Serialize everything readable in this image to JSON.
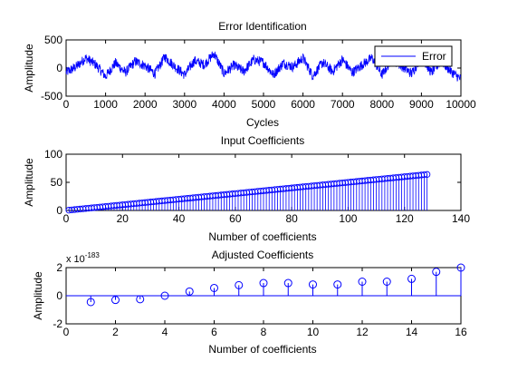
{
  "colors": {
    "series": "#0000ff",
    "axes": "#000000",
    "background": "#ffffff"
  },
  "chart_data": [
    {
      "type": "line",
      "title": "Error Identification",
      "xlabel": "Cycles",
      "ylabel": "Amplitude",
      "xlim": [
        0,
        10000
      ],
      "ylim": [
        -500,
        500
      ],
      "xticks": [
        0,
        1000,
        2000,
        3000,
        4000,
        5000,
        6000,
        7000,
        8000,
        9000,
        10000
      ],
      "yticks": [
        -500,
        0,
        500
      ],
      "grid": false,
      "legend": {
        "position": "top-right",
        "entries": [
          "Error"
        ]
      },
      "series": [
        {
          "name": "Error",
          "x": [
            0,
            250,
            500,
            750,
            1000,
            1250,
            1500,
            1750,
            2000,
            2250,
            2500,
            2750,
            3000,
            3250,
            3500,
            3750,
            4000,
            4250,
            4500,
            4750,
            5000,
            5250,
            5500,
            5750,
            6000,
            6250,
            6500,
            6750,
            7000,
            7250,
            7500,
            7750,
            8000,
            8250,
            8500,
            8750,
            9000,
            9250,
            9500,
            9750,
            10000
          ],
          "values": [
            -80,
            20,
            180,
            60,
            -150,
            90,
            -80,
            120,
            40,
            -100,
            200,
            30,
            -120,
            130,
            60,
            260,
            -100,
            50,
            -60,
            150,
            100,
            -120,
            90,
            20,
            180,
            -140,
            100,
            -60,
            150,
            -80,
            60,
            180,
            -120,
            150,
            40,
            -100,
            200,
            -80,
            120,
            -60,
            -200
          ]
        }
      ]
    },
    {
      "type": "stem",
      "title": "Input Coefficients",
      "xlabel": "Number of coefficients",
      "ylabel": "Amplitude",
      "xlim": [
        0,
        140
      ],
      "ylim": [
        0,
        100
      ],
      "xticks": [
        0,
        20,
        40,
        60,
        80,
        100,
        120,
        140
      ],
      "yticks": [
        0,
        50,
        100
      ],
      "grid": false,
      "series": [
        {
          "x_start": 1,
          "x_end": 128,
          "values_start": 0.5,
          "values_end": 64,
          "note": "linear"
        }
      ]
    },
    {
      "type": "stem",
      "title": "Adjusted Coefficients",
      "xlabel": "Number of coefficients",
      "ylabel": "Amplitude",
      "xlim": [
        0,
        16
      ],
      "ylim": [
        -2,
        2
      ],
      "xticks": [
        0,
        2,
        4,
        6,
        8,
        10,
        12,
        14,
        16
      ],
      "yticks": [
        -2,
        0,
        2
      ],
      "exponent_base": "x 10",
      "exponent_power": "-183",
      "grid": false,
      "series": [
        {
          "x": [
            1,
            2,
            3,
            4,
            5,
            6,
            7,
            8,
            9,
            10,
            11,
            12,
            13,
            14,
            15,
            16
          ],
          "values": [
            -0.45,
            -0.3,
            -0.25,
            0.0,
            0.3,
            0.55,
            0.75,
            0.9,
            0.9,
            0.8,
            0.8,
            1.0,
            1.0,
            1.2,
            1.7,
            2.0
          ]
        }
      ]
    }
  ]
}
